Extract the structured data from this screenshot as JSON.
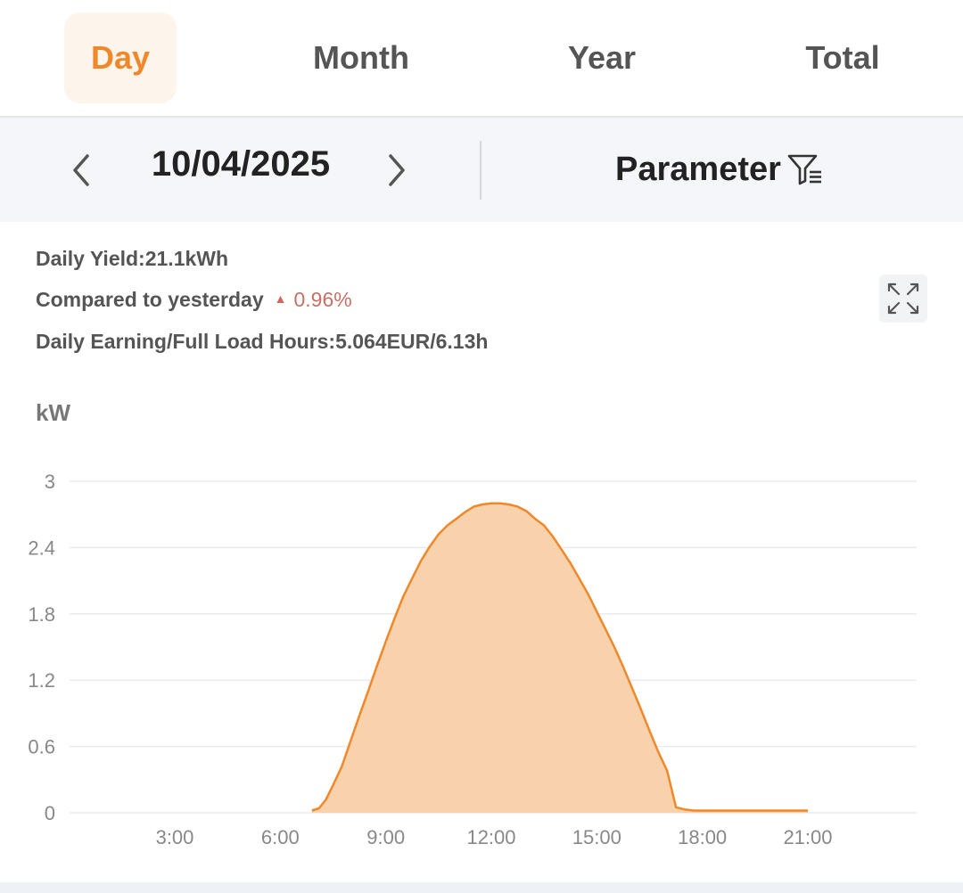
{
  "tabs": [
    {
      "label": "Day",
      "active": true
    },
    {
      "label": "Month",
      "active": false
    },
    {
      "label": "Year",
      "active": false
    },
    {
      "label": "Total",
      "active": false
    }
  ],
  "date_nav": {
    "date": "10/04/2025",
    "parameter_label": "Parameter",
    "prev_icon": "chevron-left-icon",
    "next_icon": "chevron-right-icon",
    "filter_icon": "filter-list-icon"
  },
  "summary": {
    "daily_yield": "Daily Yield:21.1kWh",
    "compared_label": "Compared to yesterday",
    "compared_value": "0.96%",
    "earning": "Daily Earning/Full Load Hours:5.064EUR/6.13h"
  },
  "colors": {
    "accent": "#f0882a",
    "area_fill": "#f8d2ad",
    "up_color": "#c97066"
  },
  "chart_data": {
    "type": "area",
    "ylabel": "kW",
    "ylim": [
      0,
      3
    ],
    "yticks": [
      "3",
      "2.4",
      "1.8",
      "1.2",
      "0.6",
      "0"
    ],
    "ytick_values": [
      3,
      2.4,
      1.8,
      1.2,
      0.6,
      0
    ],
    "xticks": [
      "3:00",
      "6:00",
      "9:00",
      "12:00",
      "15:00",
      "18:00",
      "21:00"
    ],
    "xtick_values": [
      3,
      6,
      9,
      12,
      15,
      18,
      21
    ],
    "xlim": [
      0,
      24
    ],
    "grid": true,
    "series": [
      {
        "x": [
          6.9,
          7.1,
          7.3,
          7.5,
          7.75,
          8.0,
          8.25,
          8.5,
          8.75,
          9.0,
          9.25,
          9.5,
          9.75,
          10.0,
          10.25,
          10.5,
          10.75,
          11.0,
          11.25,
          11.5,
          11.75,
          12.0,
          12.25,
          12.5,
          12.75,
          13.0,
          13.25,
          13.5,
          13.75,
          14.0,
          14.25,
          14.5,
          14.75,
          15.0,
          15.25,
          15.5,
          15.75,
          16.0,
          16.25,
          16.5,
          16.75,
          17.0,
          17.25,
          17.5,
          17.75,
          18.0,
          18.25,
          18.5,
          18.7,
          19.0,
          19.5,
          20.0,
          20.5,
          21.0
        ],
        "values": [
          0.02,
          0.04,
          0.12,
          0.25,
          0.42,
          0.65,
          0.88,
          1.1,
          1.33,
          1.55,
          1.76,
          1.96,
          2.12,
          2.28,
          2.41,
          2.52,
          2.6,
          2.66,
          2.72,
          2.77,
          2.79,
          2.8,
          2.8,
          2.79,
          2.77,
          2.73,
          2.66,
          2.6,
          2.5,
          2.38,
          2.26,
          2.12,
          1.98,
          1.82,
          1.66,
          1.5,
          1.32,
          1.13,
          0.94,
          0.74,
          0.55,
          0.38,
          0.05,
          0.03,
          0.02,
          0.02,
          0.02,
          0.02,
          0.02,
          0.02,
          0.02,
          0.02,
          0.02,
          0.02
        ]
      }
    ]
  }
}
